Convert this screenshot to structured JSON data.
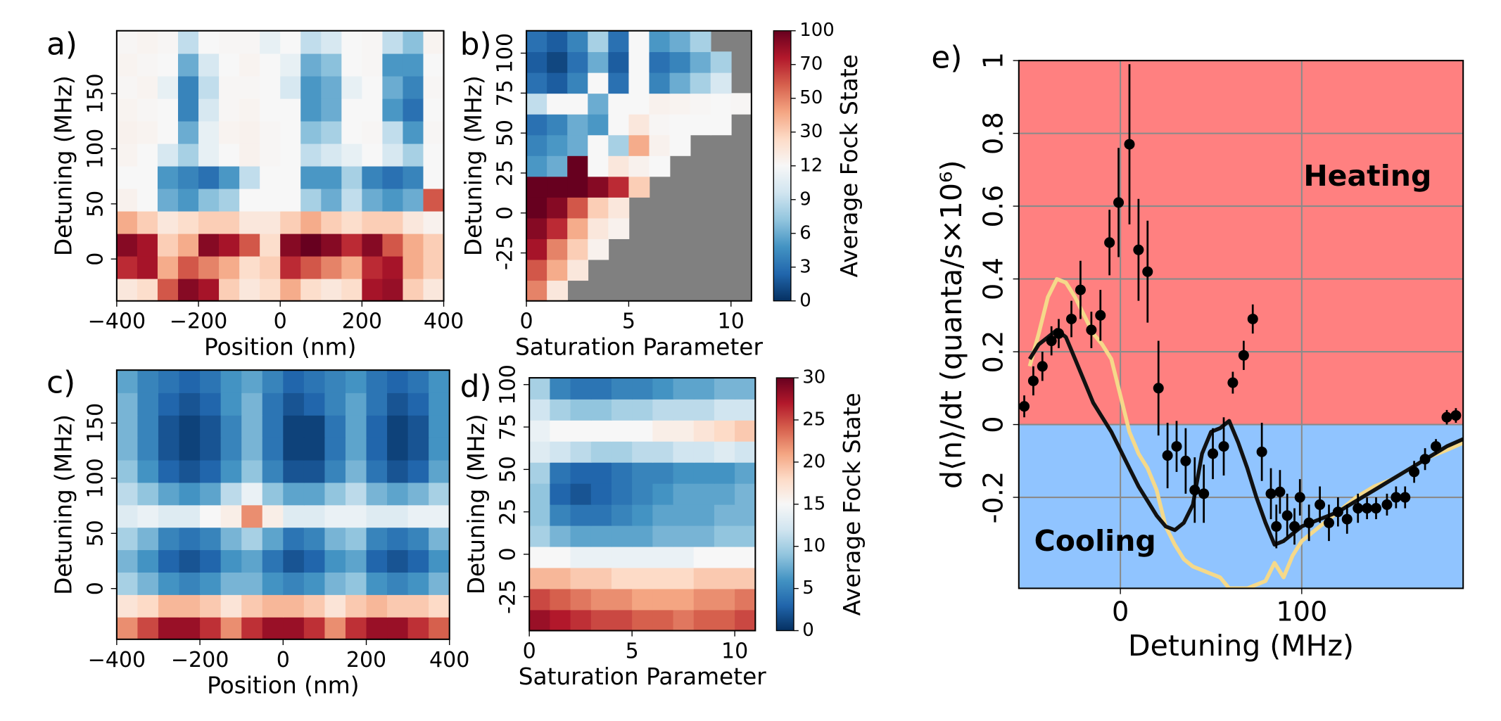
{
  "chart_data": [
    {
      "type": "heatmap",
      "label": "a)",
      "xlabel": "Position (nm)",
      "ylabel": "Detuning (MHz)",
      "cmap": "RdBu_r",
      "xlim": [
        -400,
        400
      ],
      "ylim": [
        -38,
        207
      ],
      "xticks": [
        {
          "value": -400,
          "label": "−400"
        },
        {
          "value": -200,
          "label": "−200"
        },
        0,
        200,
        400
      ],
      "yticks": [
        0,
        50,
        100,
        150
      ],
      "z": [
        [
          20,
          25,
          60,
          90,
          80,
          30,
          20,
          25,
          40,
          25,
          20,
          25,
          80,
          85,
          30,
          20
        ],
        [
          70,
          80,
          40,
          60,
          50,
          40,
          25,
          30,
          70,
          60,
          50,
          40,
          70,
          80,
          40,
          30
        ],
        [
          90,
          80,
          30,
          40,
          90,
          80,
          60,
          25,
          90,
          100,
          90,
          70,
          90,
          60,
          40,
          30
        ],
        [
          40,
          30,
          20,
          25,
          30,
          30,
          20,
          20,
          30,
          40,
          30,
          25,
          30,
          30,
          20,
          15
        ],
        [
          15,
          12,
          6,
          5,
          7,
          8,
          12,
          12,
          12,
          8,
          6,
          9,
          6,
          5,
          6,
          60
        ],
        [
          12,
          12,
          5,
          4,
          3,
          5,
          9,
          12,
          12,
          5,
          5,
          8,
          4,
          3,
          4,
          12
        ],
        [
          14,
          12,
          10,
          8,
          11,
          12,
          15,
          13,
          12,
          9,
          10,
          11,
          12,
          10,
          8,
          12
        ],
        [
          15,
          14,
          12,
          6,
          11,
          14,
          15,
          13,
          12,
          7,
          8,
          12,
          13,
          9,
          5,
          13
        ],
        [
          14,
          13,
          12,
          4,
          10,
          13,
          14,
          12,
          12,
          5,
          6,
          12,
          12,
          5,
          3,
          12
        ],
        [
          13,
          14,
          11,
          4,
          9,
          13,
          13,
          12,
          10,
          5,
          6,
          11,
          12,
          6,
          4,
          13
        ],
        [
          14,
          13,
          12,
          6,
          10,
          12,
          14,
          12,
          11,
          6,
          7,
          12,
          13,
          5,
          5,
          12
        ],
        [
          13,
          14,
          13,
          9,
          12,
          13,
          13,
          11,
          12,
          9,
          10,
          12,
          13,
          9,
          7,
          14
        ]
      ]
    },
    {
      "type": "heatmap",
      "label": "b)",
      "xlabel": "Saturation Parameter",
      "ylabel": "Detuning (MHz)",
      "cmap": "RdBu_r",
      "missing_color": "#808080",
      "xlim": [
        0,
        11
      ],
      "ylim": [
        -55,
        114
      ],
      "xticks": [
        0,
        5,
        10
      ],
      "yticks": [
        {
          "value": -25,
          "label": "-25"
        },
        0,
        25,
        50,
        75,
        100
      ],
      "colorbar": {
        "label": "Average Fock State",
        "scale": "segmented",
        "ticks": [
          0,
          3,
          6,
          9,
          12,
          30,
          50,
          70,
          100
        ]
      },
      "z": [
        [
          50,
          20,
          null,
          null,
          null,
          null,
          null,
          null,
          null,
          null,
          null
        ],
        [
          60,
          40,
          20,
          null,
          null,
          null,
          null,
          null,
          null,
          null,
          null
        ],
        [
          80,
          50,
          30,
          15,
          null,
          null,
          null,
          null,
          null,
          null,
          null
        ],
        [
          90,
          70,
          40,
          20,
          15,
          null,
          null,
          null,
          null,
          null,
          null
        ],
        [
          100,
          90,
          60,
          30,
          20,
          null,
          null,
          null,
          null,
          null,
          null
        ],
        [
          100,
          100,
          100,
          90,
          70,
          30,
          null,
          null,
          null,
          null,
          null
        ],
        [
          5,
          6,
          100,
          12,
          20,
          15,
          12,
          null,
          null,
          null,
          null
        ],
        [
          4,
          5,
          6,
          12,
          8,
          40,
          15,
          12,
          null,
          null,
          null
        ],
        [
          3,
          4,
          6,
          5,
          12,
          20,
          13,
          12,
          12,
          12,
          null
        ],
        [
          9,
          12,
          12,
          6,
          12,
          12,
          15,
          14,
          13,
          12,
          13
        ],
        [
          3,
          2,
          4,
          12,
          3,
          12,
          4,
          6,
          8,
          10,
          null
        ],
        [
          2,
          1,
          3,
          6,
          2,
          12,
          3,
          4,
          6,
          8,
          null
        ],
        [
          3,
          2,
          4,
          8,
          3,
          12,
          5,
          6,
          8,
          null,
          null
        ]
      ]
    },
    {
      "type": "heatmap",
      "label": "c)",
      "xlabel": "Position (nm)",
      "ylabel": "Detuning (MHz)",
      "cmap": "RdBu_r",
      "xlim": [
        -400,
        400
      ],
      "ylim": [
        -46,
        198
      ],
      "xticks": [
        {
          "value": -400,
          "label": "−400"
        },
        {
          "value": -200,
          "label": "−200"
        },
        0,
        200,
        400
      ],
      "yticks": [
        0,
        50,
        100,
        150
      ],
      "z": [
        [
          22,
          25,
          28,
          28,
          26,
          22,
          26,
          28,
          28,
          26,
          22,
          26,
          28,
          28,
          26,
          24
        ],
        [
          17,
          18,
          20,
          20,
          19,
          17,
          19,
          20,
          20,
          19,
          17,
          19,
          20,
          19,
          19,
          18
        ],
        [
          10,
          8,
          6,
          5,
          6,
          8,
          8,
          6,
          5,
          6,
          8,
          9,
          6,
          5,
          6,
          8
        ],
        [
          8,
          6,
          3,
          2,
          3,
          6,
          7,
          4,
          2,
          3,
          6,
          7,
          3,
          2,
          3,
          6
        ],
        [
          10,
          8,
          5,
          4,
          5,
          8,
          10,
          7,
          4,
          5,
          8,
          9,
          5,
          4,
          5,
          8
        ],
        [
          13,
          14,
          13,
          13,
          15,
          16,
          22,
          16,
          13,
          13,
          14,
          14,
          13,
          13,
          14,
          14
        ],
        [
          11,
          9,
          7,
          6,
          7,
          11,
          14,
          9,
          7,
          7,
          9,
          11,
          8,
          7,
          8,
          10
        ],
        [
          9,
          6,
          3,
          2,
          3,
          6,
          9,
          5,
          2,
          2,
          5,
          8,
          4,
          2,
          3,
          7
        ],
        [
          8,
          5,
          2,
          1,
          2,
          5,
          8,
          4,
          1,
          1,
          4,
          7,
          3,
          1,
          2,
          6
        ],
        [
          8,
          5,
          2,
          1,
          2,
          5,
          8,
          4,
          1,
          1,
          4,
          7,
          3,
          1,
          2,
          6
        ],
        [
          8,
          5,
          3,
          2,
          3,
          6,
          8,
          4,
          2,
          3,
          5,
          7,
          4,
          2,
          3,
          6
        ],
        [
          7,
          5,
          4,
          3,
          4,
          6,
          7,
          5,
          3,
          4,
          5,
          6,
          4,
          3,
          4,
          6
        ]
      ]
    },
    {
      "type": "heatmap",
      "label": "d)",
      "xlabel": "Saturation Parameter",
      "ylabel": "Detuning (MHz)",
      "cmap": "RdBu_r",
      "xlim": [
        0,
        11
      ],
      "ylim": [
        -45,
        104
      ],
      "xticks": [
        0,
        5,
        10
      ],
      "yticks": [
        {
          "value": -25,
          "label": "-25"
        },
        0,
        25,
        50,
        75,
        100
      ],
      "colorbar": {
        "label": "Average Fock State",
        "scale": "linear",
        "clim": [
          0,
          30
        ],
        "ticks": [
          0,
          5,
          10,
          15,
          20,
          25,
          30
        ]
      },
      "z": [
        [
          28,
          27,
          26,
          25,
          25,
          24,
          24,
          23,
          24,
          24,
          25
        ],
        [
          25,
          24,
          23,
          22,
          22,
          21,
          21,
          21,
          22,
          22,
          23
        ],
        [
          20,
          20,
          19,
          19,
          18,
          18,
          18,
          18,
          19,
          19,
          19
        ],
        [
          15,
          15,
          14,
          14,
          14,
          14,
          14,
          14,
          15,
          15,
          15
        ],
        [
          10,
          8,
          7,
          7,
          7,
          7,
          8,
          8,
          8,
          9,
          9
        ],
        [
          9,
          5,
          4,
          4,
          5,
          6,
          7,
          7,
          7,
          8,
          8
        ],
        [
          9,
          3,
          2,
          3,
          4,
          5,
          6,
          7,
          7,
          7,
          8
        ],
        [
          10,
          4,
          3,
          3,
          4,
          5,
          5,
          6,
          6,
          6,
          7
        ],
        [
          13,
          12,
          11,
          10,
          10,
          11,
          11,
          12,
          12,
          13,
          12
        ],
        [
          14,
          15,
          15,
          15,
          15,
          15,
          16,
          16,
          17,
          18,
          19
        ],
        [
          12,
          10,
          9,
          9,
          10,
          10,
          11,
          11,
          11,
          12,
          12
        ],
        [
          10,
          5,
          4,
          4,
          5,
          5,
          6,
          7,
          7,
          8,
          8
        ]
      ]
    },
    {
      "type": "scatter",
      "label": "e)",
      "xlabel": "Detuning (MHz)",
      "ylabel": "d⟨n⟩/dt (quanta/s×10⁶)",
      "xlim": [
        -56,
        189
      ],
      "ylim": [
        -0.45,
        1
      ],
      "xticks": [
        0,
        100
      ],
      "yticks": [
        -0.2,
        0,
        0.2,
        0.4,
        0.6,
        0.8,
        1
      ],
      "grid": true,
      "heating_color": "#ff8080",
      "cooling_color": "#90c4ff",
      "annotations": [
        "Heating",
        "Cooling"
      ],
      "points": {
        "color": "#000000",
        "x": [
          -53,
          -48,
          -43,
          -38,
          -34,
          -27,
          -22,
          -16,
          -11,
          -6,
          -1,
          5,
          10,
          15,
          21,
          26,
          31,
          36,
          41,
          46,
          51,
          57,
          62,
          68,
          73,
          78,
          83,
          86,
          88,
          92,
          96,
          99,
          104,
          110,
          115,
          120,
          125,
          131,
          136,
          141,
          147,
          152,
          157,
          162,
          168,
          174,
          180,
          185
        ],
        "y": [
          0.05,
          0.12,
          0.16,
          0.23,
          0.25,
          0.29,
          0.37,
          0.26,
          0.3,
          0.5,
          0.61,
          0.77,
          0.48,
          0.42,
          0.1,
          -0.085,
          -0.06,
          -0.1,
          -0.18,
          -0.19,
          -0.08,
          -0.06,
          0.115,
          0.19,
          0.29,
          -0.075,
          -0.19,
          -0.28,
          -0.185,
          -0.25,
          -0.28,
          -0.2,
          -0.27,
          -0.22,
          -0.27,
          -0.24,
          -0.26,
          -0.23,
          -0.23,
          -0.23,
          -0.22,
          -0.2,
          -0.2,
          -0.13,
          -0.095,
          -0.06,
          0.02,
          0.025
        ],
        "err": [
          0.03,
          0.04,
          0.04,
          0.04,
          0.04,
          0.05,
          0.08,
          0.05,
          0.07,
          0.09,
          0.15,
          0.22,
          0.14,
          0.14,
          0.13,
          0.09,
          0.07,
          0.09,
          0.09,
          0.08,
          0.07,
          0.08,
          0.03,
          0.04,
          0.04,
          0.08,
          0.07,
          0.06,
          0.06,
          0.06,
          0.05,
          0.05,
          0.05,
          0.05,
          0.05,
          0.04,
          0.04,
          0.04,
          0.03,
          0.03,
          0.03,
          0.03,
          0.03,
          0.03,
          0.03,
          0.02,
          0.02,
          0.02
        ]
      },
      "lines": [
        {
          "color": "#111111",
          "x": [
            -50,
            -45,
            -40,
            -35,
            -30,
            -25,
            -20,
            -15,
            -10,
            -5,
            0,
            5,
            10,
            15,
            20,
            25,
            30,
            35,
            40,
            45,
            50,
            55,
            60,
            65,
            70,
            75,
            80,
            85,
            90,
            95,
            100,
            110,
            120,
            130,
            140,
            150,
            160,
            170,
            180,
            189
          ],
          "y": [
            0.18,
            0.22,
            0.24,
            0.26,
            0.24,
            0.18,
            0.12,
            0.06,
            0.02,
            -0.02,
            -0.07,
            -0.12,
            -0.17,
            -0.21,
            -0.25,
            -0.28,
            -0.29,
            -0.27,
            -0.22,
            -0.08,
            -0.02,
            -0.01,
            0.01,
            -0.05,
            -0.12,
            -0.2,
            -0.27,
            -0.33,
            -0.32,
            -0.3,
            -0.28,
            -0.26,
            -0.24,
            -0.21,
            -0.18,
            -0.15,
            -0.12,
            -0.09,
            -0.06,
            -0.04
          ]
        },
        {
          "color": "#f5d98a",
          "x": [
            -50,
            -45,
            -40,
            -35,
            -30,
            -25,
            -20,
            -15,
            -10,
            -5,
            0,
            5,
            10,
            15,
            20,
            25,
            30,
            35,
            40,
            45,
            50,
            55,
            60,
            65,
            70,
            80,
            85,
            90,
            95,
            100,
            110,
            120,
            130,
            140,
            150,
            160,
            170,
            180,
            189
          ],
          "y": [
            0.16,
            0.25,
            0.35,
            0.4,
            0.39,
            0.35,
            0.3,
            0.25,
            0.22,
            0.18,
            0.08,
            -0.02,
            -0.08,
            -0.12,
            -0.18,
            -0.28,
            -0.33,
            -0.37,
            -0.39,
            -0.4,
            -0.41,
            -0.42,
            -0.45,
            -0.45,
            -0.45,
            -0.43,
            -0.38,
            -0.42,
            -0.36,
            -0.32,
            -0.28,
            -0.24,
            -0.2,
            -0.17,
            -0.15,
            -0.12,
            -0.09,
            -0.07,
            -0.05
          ]
        }
      ]
    }
  ]
}
